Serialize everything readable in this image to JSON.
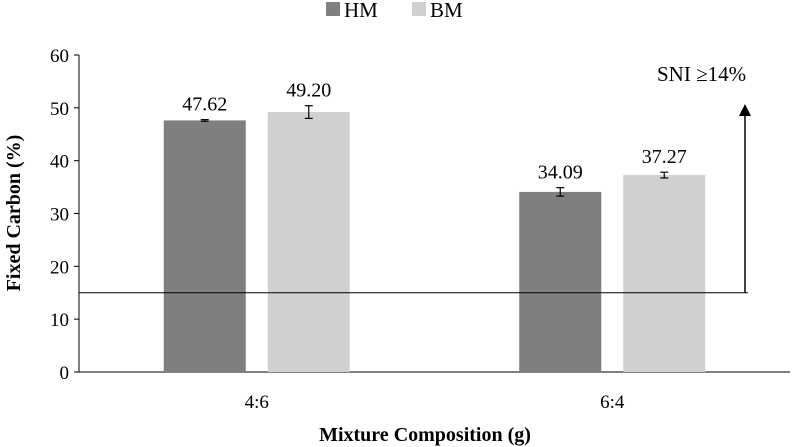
{
  "chart_data": {
    "type": "bar",
    "categories": [
      "4:6",
      "6:4"
    ],
    "series": [
      {
        "name": "HM",
        "values": [
          47.62,
          34.09
        ],
        "errors": [
          0.15,
          0.8
        ],
        "color": "#7f7f7f"
      },
      {
        "name": "BM",
        "values": [
          49.2,
          37.27
        ],
        "errors": [
          1.2,
          0.55
        ],
        "color": "#d0d0d0"
      }
    ],
    "data_labels": [
      [
        "47.62",
        "34.09"
      ],
      [
        "49.20",
        "37.27"
      ]
    ],
    "xlabel": "Mixture Composition (g)",
    "ylabel": "Fixed Carbon (%)",
    "ylim": [
      0,
      60
    ],
    "yticks": [
      0,
      10,
      20,
      30,
      40,
      50,
      60
    ],
    "grid": false,
    "legend_position": "top",
    "reference_line": {
      "value": 15,
      "label": "SNI ≥14%"
    }
  }
}
